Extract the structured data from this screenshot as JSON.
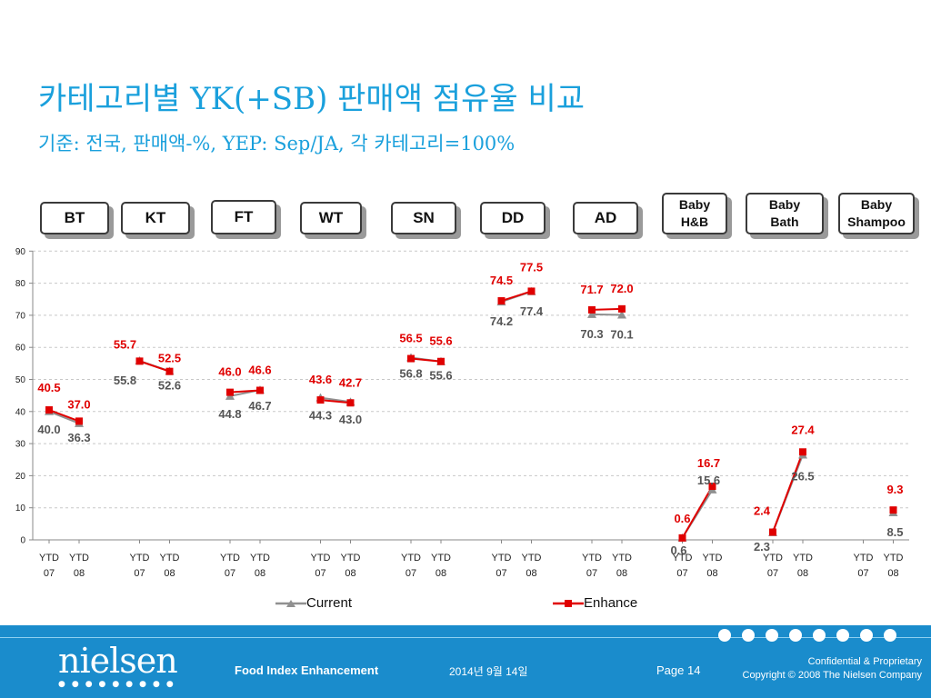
{
  "title": "카테고리별 YK(+SB) 판매액 점유율 비교",
  "subtitle": "기준: 전국, 판매액-%, YEP: Sep/JA, 각 카테고리=100%",
  "categories": [
    "BT",
    "KT",
    "FT",
    "WT",
    "SN",
    "DD",
    "AD",
    "Baby\nH&B",
    "Baby\nBath",
    "Baby\nShampoo"
  ],
  "footer": {
    "logo": "nielsen",
    "product": "Food Index Enhancement",
    "date": "2014년 9월 14일",
    "page": "Page 14",
    "confidential": "Confidential & Proprietary",
    "copyright": "Copyright © 2008 The Nielsen Company"
  },
  "colors": {
    "title": "#1aa0dc",
    "current": "#909090",
    "enhance": "#e00000",
    "footer": "#1a8ccc"
  },
  "chart_data": {
    "type": "line",
    "ylim": [
      0,
      90
    ],
    "yticks": [
      0,
      10,
      20,
      30,
      40,
      50,
      60,
      70,
      80,
      90
    ],
    "x_labels": [
      "YTD\n07",
      "YTD\n08"
    ],
    "groups": [
      "BT",
      "KT",
      "FT",
      "WT",
      "SN",
      "DD",
      "AD",
      "Baby H&B",
      "Baby Bath",
      "Baby Shampoo"
    ],
    "series": [
      {
        "name": "Current",
        "values": [
          [
            40.0,
            36.3
          ],
          [
            55.8,
            52.6
          ],
          [
            44.8,
            46.7
          ],
          [
            44.3,
            43.0
          ],
          [
            56.8,
            55.6
          ],
          [
            74.2,
            77.4
          ],
          [
            70.3,
            70.1
          ],
          [
            0.6,
            15.6
          ],
          [
            2.3,
            26.5
          ],
          [
            null,
            8.5
          ]
        ]
      },
      {
        "name": "Enhance",
        "values": [
          [
            40.5,
            37.0
          ],
          [
            55.7,
            52.5
          ],
          [
            46.0,
            46.6
          ],
          [
            43.6,
            42.7
          ],
          [
            56.5,
            55.6
          ],
          [
            74.5,
            77.5
          ],
          [
            71.7,
            72.0
          ],
          [
            0.6,
            16.7
          ],
          [
            2.4,
            27.4
          ],
          [
            null,
            9.3
          ]
        ]
      }
    ],
    "grid": "horizontal dashed",
    "legend_position": "bottom"
  }
}
